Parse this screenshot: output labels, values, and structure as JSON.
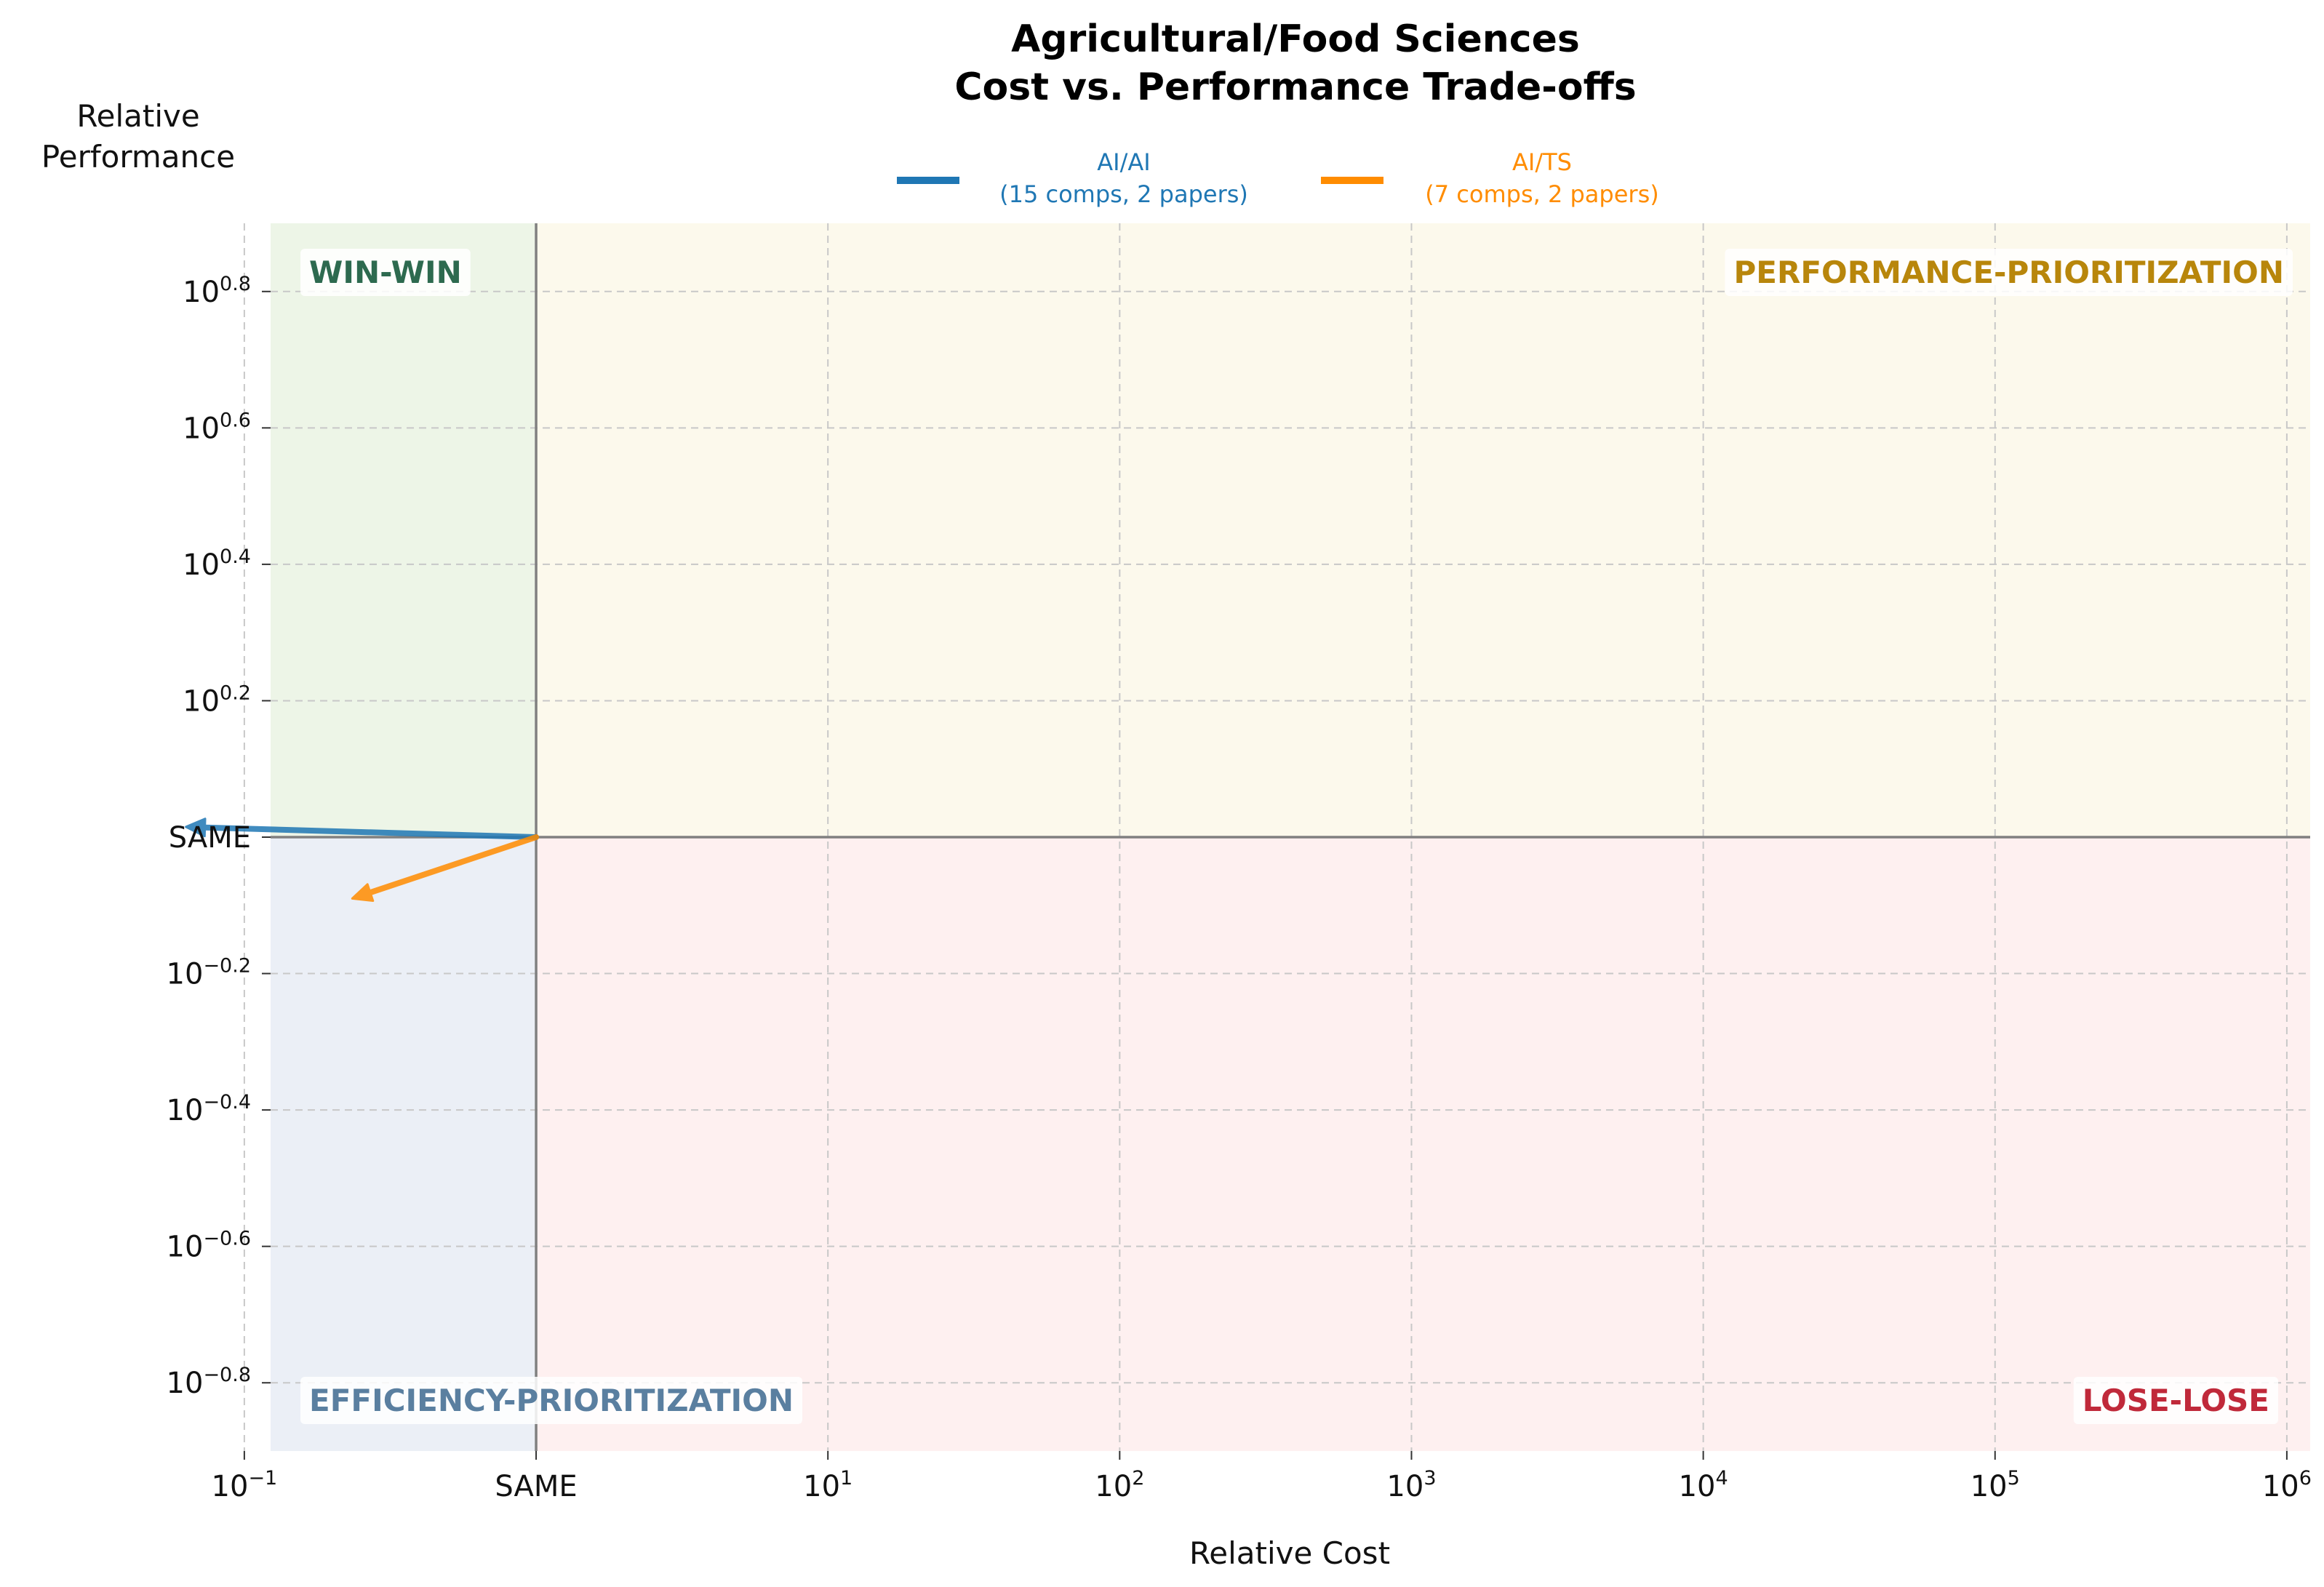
{
  "chart_data": {
    "type": "quadrant-arrow",
    "title_line1": "Agricultural/Food Sciences",
    "title_line2": "Cost vs. Performance Trade-offs",
    "xlabel": "Relative Cost",
    "ylabel_line1": "Relative",
    "ylabel_line2": "Performance",
    "x_scale": "log",
    "y_scale": "log",
    "xlim_log10": [
      -0.91,
      6.08
    ],
    "ylim_log10": [
      -0.9,
      0.9
    ],
    "x_ticks": [
      {
        "base": "10",
        "exp": "−1",
        "log10": -1
      },
      {
        "label": "SAME",
        "log10": 0
      },
      {
        "base": "10",
        "exp": "1",
        "log10": 1
      },
      {
        "base": "10",
        "exp": "2",
        "log10": 2
      },
      {
        "base": "10",
        "exp": "3",
        "log10": 3
      },
      {
        "base": "10",
        "exp": "4",
        "log10": 4
      },
      {
        "base": "10",
        "exp": "5",
        "log10": 5
      },
      {
        "base": "10",
        "exp": "6",
        "log10": 6
      }
    ],
    "y_ticks": [
      {
        "base": "10",
        "exp": "0.8",
        "log10": 0.8
      },
      {
        "base": "10",
        "exp": "0.6",
        "log10": 0.6
      },
      {
        "base": "10",
        "exp": "0.4",
        "log10": 0.4
      },
      {
        "base": "10",
        "exp": "0.2",
        "log10": 0.2
      },
      {
        "label": "SAME",
        "log10": 0
      },
      {
        "base": "10",
        "exp": "−0.2",
        "log10": -0.2
      },
      {
        "base": "10",
        "exp": "−0.4",
        "log10": -0.4
      },
      {
        "base": "10",
        "exp": "−0.6",
        "log10": -0.6
      },
      {
        "base": "10",
        "exp": "−0.8",
        "log10": -0.8
      }
    ],
    "grid": true,
    "legend_position": "top-center",
    "series": [
      {
        "name": "AI/AI",
        "detail": "(15 comps, 2 papers)",
        "color": "#1f77b4",
        "from_log10": [
          0,
          0
        ],
        "to_log10": [
          -1.2,
          0.015
        ]
      },
      {
        "name": "AI/TS",
        "detail": "(7 comps, 2 papers)",
        "color": "#ff8c00",
        "from_log10": [
          0,
          0
        ],
        "to_log10": [
          -0.63,
          -0.09
        ]
      }
    ],
    "quadrants": [
      {
        "label": "WIN-WIN",
        "color": "#2d6a4f",
        "fill": "#edf5e7",
        "position": "top-left"
      },
      {
        "label": "PERFORMANCE-PRIORITIZATION",
        "color": "#b8860b",
        "fill": "#fcf9ec",
        "position": "top-right"
      },
      {
        "label": "EFFICIENCY-PRIORITIZATION",
        "color": "#5a7fa0",
        "fill": "#ebeff6",
        "position": "bottom-left"
      },
      {
        "label": "LOSE-LOSE",
        "color": "#c0293a",
        "fill": "#fef0f0",
        "position": "bottom-right"
      }
    ]
  }
}
